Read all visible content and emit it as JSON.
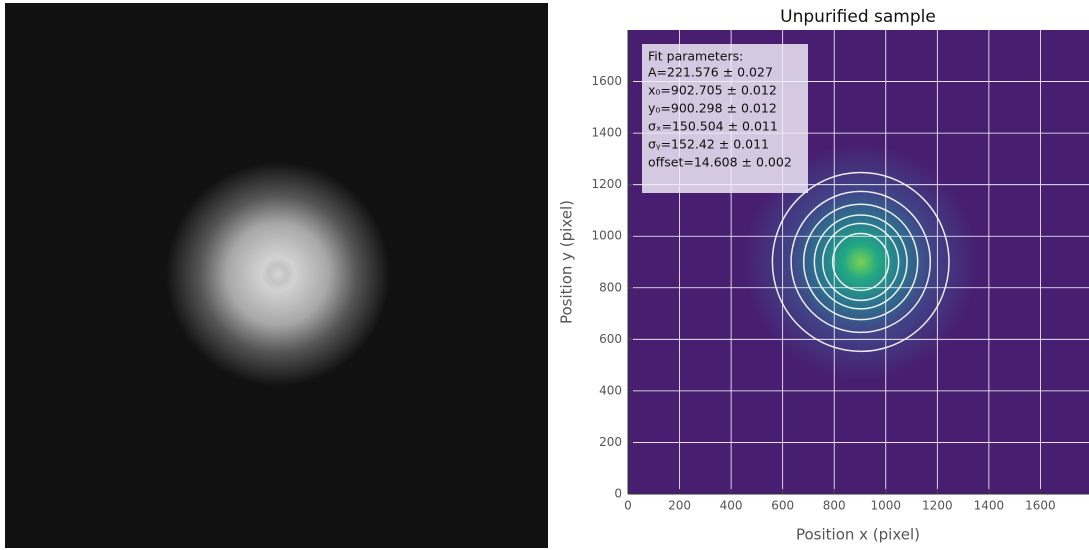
{
  "chart_data": {
    "type": "heatmap",
    "title": "Unpurified sample",
    "x_label": "Position x (pixel)",
    "y_label": "Position y (pixel)",
    "xlim": [
      0,
      1800
    ],
    "ylim": [
      0,
      1800
    ],
    "xticks": [
      0,
      200,
      400,
      600,
      800,
      1000,
      1200,
      1400,
      1600
    ],
    "yticks": [
      0,
      200,
      400,
      600,
      800,
      1000,
      1200,
      1400,
      1600
    ],
    "grid": true,
    "annotation": {
      "title": "Fit parameters:",
      "lines": [
        "A=221.576 ± 0.027",
        "x₀=902.705 ± 0.012",
        "y₀=900.298 ± 0.012",
        "σₓ=150.504 ± 0.011",
        "σᵧ=152.42 ± 0.011",
        "offset=14.608 ± 0.002"
      ]
    }
  }
}
